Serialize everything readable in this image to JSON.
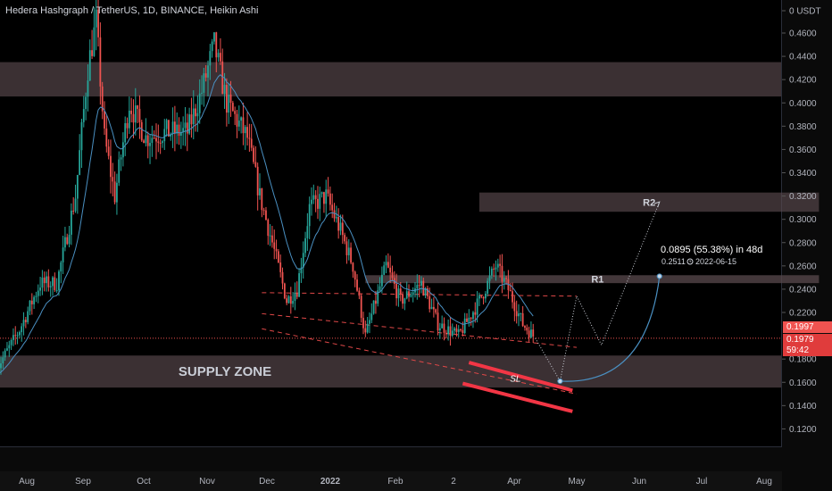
{
  "header": {
    "title": "Hedera Hashgraph / TetherUS, 1D, BINANCE, Heikin Ashi"
  },
  "price_tags": {
    "last": "0.1997",
    "ha_close": "0.1979",
    "countdown": "59:42"
  },
  "colors": {
    "up": "#26a69a",
    "down": "#ef5350",
    "zone": "#5a4a4e",
    "channel": "#e04848",
    "ma": "#4a90c2",
    "background": "#000000"
  },
  "chart_data": {
    "type": "candlestick",
    "series_type": "Heikin Ashi",
    "symbol": "Hedera Hashgraph / TetherUS",
    "timeframe": "1D",
    "exchange": "BINANCE",
    "title": "Hedera Hashgraph / TetherUS, 1D, BINANCE, Heikin Ashi",
    "y_axis": {
      "ticks": [
        "0 USDT",
        "0.4600",
        "0.4400",
        "0.4200",
        "0.4000",
        "0.3800",
        "0.3600",
        "0.3400",
        "0.3200",
        "0.3000",
        "0.2800",
        "0.2600",
        "0.2400",
        "0.2200",
        "0.1800",
        "0.1600",
        "0.1400",
        "0.1200"
      ],
      "range": [
        0.11,
        0.47
      ]
    },
    "x_axis": {
      "ticks": [
        "Aug",
        "Sep",
        "Oct",
        "Nov",
        "Dec",
        "2022",
        "Feb",
        "2",
        "Apr",
        "May",
        "Jun",
        "Jul",
        "Aug"
      ]
    },
    "price_path": [
      [
        "2021-07-30",
        0.172
      ],
      [
        "2021-08-10",
        0.205
      ],
      [
        "2021-08-20",
        0.245
      ],
      [
        "2021-08-28",
        0.245
      ],
      [
        "2021-09-06",
        0.32
      ],
      [
        "2021-09-12",
        0.43
      ],
      [
        "2021-09-16",
        0.47
      ],
      [
        "2021-09-20",
        0.37
      ],
      [
        "2021-09-25",
        0.32
      ],
      [
        "2021-10-02",
        0.4
      ],
      [
        "2021-10-10",
        0.37
      ],
      [
        "2021-10-20",
        0.375
      ],
      [
        "2021-10-30",
        0.375
      ],
      [
        "2021-11-06",
        0.41
      ],
      [
        "2021-11-12",
        0.45
      ],
      [
        "2021-11-18",
        0.4
      ],
      [
        "2021-11-28",
        0.37
      ],
      [
        "2021-12-04",
        0.32
      ],
      [
        "2021-12-10",
        0.28
      ],
      [
        "2021-12-17",
        0.23
      ],
      [
        "2021-12-22",
        0.24
      ],
      [
        "2021-12-28",
        0.31
      ],
      [
        "2022-01-05",
        0.32
      ],
      [
        "2022-01-12",
        0.29
      ],
      [
        "2022-01-18",
        0.26
      ],
      [
        "2022-01-24",
        0.2
      ],
      [
        "2022-02-03",
        0.26
      ],
      [
        "2022-02-10",
        0.23
      ],
      [
        "2022-02-20",
        0.245
      ],
      [
        "2022-02-28",
        0.21
      ],
      [
        "2022-03-10",
        0.2
      ],
      [
        "2022-03-20",
        0.23
      ],
      [
        "2022-03-28",
        0.26
      ],
      [
        "2022-04-03",
        0.24
      ],
      [
        "2022-04-10",
        0.21
      ],
      [
        "2022-04-16",
        0.1979
      ]
    ],
    "projection_path": [
      [
        "2022-04-16",
        0.1979
      ],
      [
        "2022-04-28",
        0.161
      ],
      [
        "2022-05-06",
        0.234
      ],
      [
        "2022-05-18",
        0.192
      ],
      [
        "2022-06-15",
        0.315
      ]
    ],
    "zones": [
      {
        "name": "upper-zone",
        "y_range": [
          0.4055,
          0.435
        ]
      },
      {
        "name": "R2",
        "label": "R2",
        "y_range": [
          0.3065,
          0.323
        ],
        "x_range": [
          "2022-03-20",
          "2022-08-31"
        ]
      },
      {
        "name": "R1",
        "label": "R1",
        "y_range": [
          0.2452,
          0.252
        ],
        "x_range": [
          "2022-01-24",
          "2022-08-31"
        ]
      },
      {
        "name": "supply-zone",
        "label": "SUPPLY ZONE",
        "y_range": [
          0.1555,
          0.183
        ]
      }
    ],
    "channel_lines": [
      [
        [
          "2021-12-05",
          0.237
        ],
        [
          "2022-05-06",
          0.234
        ]
      ],
      [
        [
          "2021-12-05",
          0.219
        ],
        [
          "2022-05-06",
          0.19
        ]
      ],
      [
        [
          "2021-12-05",
          0.206
        ],
        [
          "2022-05-06",
          0.15
        ]
      ]
    ],
    "sl_lines": [
      [
        [
          "2022-03-15",
          0.177
        ],
        [
          "2022-05-04",
          0.153
        ]
      ],
      [
        [
          "2022-03-12",
          0.159
        ],
        [
          "2022-05-04",
          0.135
        ]
      ]
    ],
    "sl_label": "SL",
    "current_price": 0.1979,
    "measurement": {
      "change_text": "0.0895 (55.38%) in 48d",
      "price": "0.2511",
      "date": "2022-06-15"
    }
  }
}
